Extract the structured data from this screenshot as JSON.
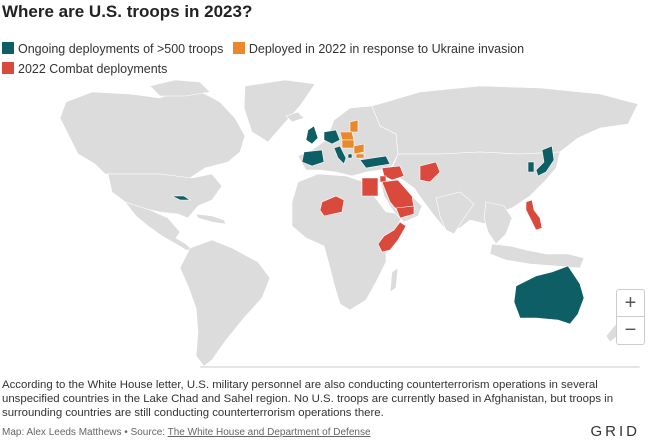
{
  "title": "Where are U.S. troops in 2023?",
  "legend": [
    {
      "label": "Ongoing deployments of >500 troops",
      "color": "#0e5e65"
    },
    {
      "label": "Deployed in 2022 in response to Ukraine invasion",
      "color": "#e8892b"
    },
    {
      "label": "2022 Combat deployments",
      "color": "#d94a3d"
    }
  ],
  "map": {
    "land_color": "#dcdcdc",
    "water_color": "#ffffff",
    "highlighted": {
      "ongoing": [
        "United Kingdom",
        "Spain",
        "Germany",
        "Italy",
        "Turkey",
        "Kosovo",
        "Japan",
        "South Korea",
        "Cuba",
        "Australia"
      ],
      "ukraine_response": [
        "Poland",
        "Lithuania",
        "Latvia",
        "Estonia",
        "Slovakia",
        "Hungary",
        "Romania",
        "Bulgaria"
      ],
      "combat": [
        "Egypt",
        "Saudi Arabia",
        "Yemen",
        "Jordan",
        "Syria",
        "Iraq",
        "Afghanistan",
        "Niger",
        "Somalia",
        "Kenya",
        "Philippines"
      ]
    }
  },
  "controls": {
    "zoom_in": "+",
    "zoom_out": "−"
  },
  "note": "According to the White House letter, U.S. military personnel are also conducting counterterrorism operations in several unspecified countries in the Lake Chad and Sahel region. No U.S. troops are currently based in Afghanistan, but troops in surrounding countries are still conducting counterterrorism operations there.",
  "credits": {
    "prefix": "Map: Alex Leeds Matthews • Source: ",
    "source_link": "The White House and Department of Defense"
  },
  "logo": "GRID"
}
